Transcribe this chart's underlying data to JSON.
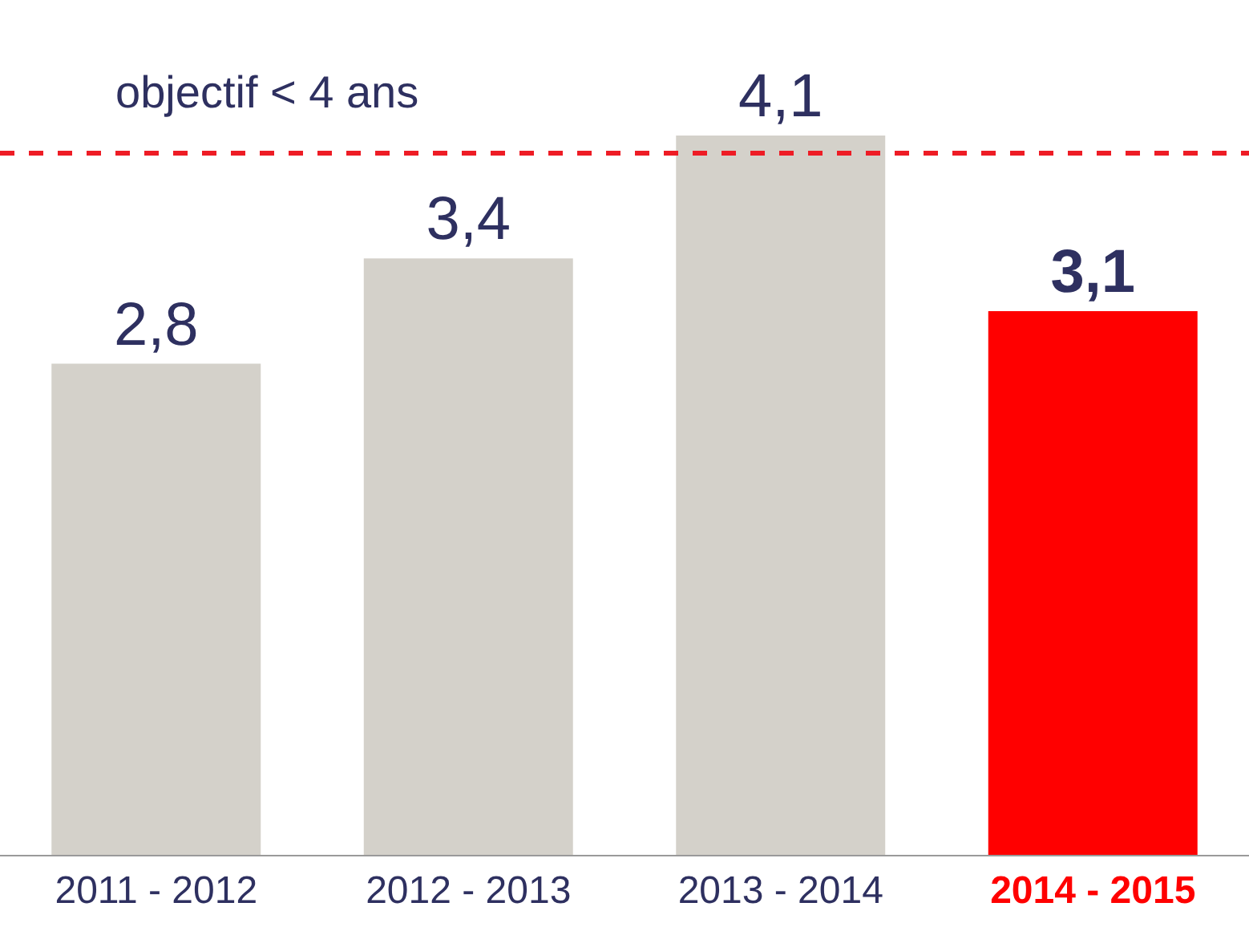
{
  "chart_data": {
    "type": "bar",
    "categories": [
      "2011 - 2012",
      "2012 - 2013",
      "2013 - 2014",
      "2014 - 2015"
    ],
    "values": [
      2.8,
      3.4,
      4.1,
      3.1
    ],
    "colors": [
      "#d4d1ca",
      "#d4d1ca",
      "#d4d1ca",
      "#ff0000"
    ],
    "value_labels": [
      "2,8",
      "3,4",
      "4,1",
      "3,1"
    ],
    "ref_lines": [
      {
        "axis": "y",
        "value": 4,
        "label": "objectif < 4 ans",
        "color": "#ee1c25",
        "line_style": "dashed"
      }
    ],
    "tick_labels": "x"
  }
}
